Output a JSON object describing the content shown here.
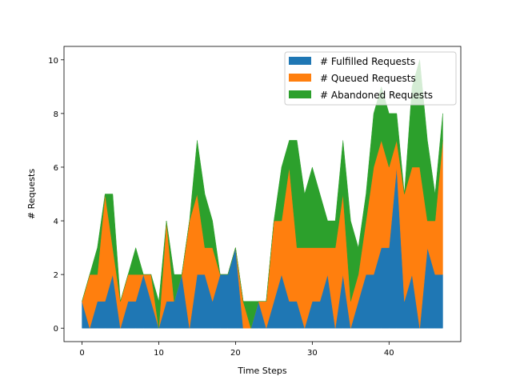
{
  "chart_data": {
    "type": "area",
    "stacked": true,
    "xlabel": "Time Steps",
    "ylabel": "# Requests",
    "xlim": [
      -2.35,
      49.35
    ],
    "ylim": [
      -0.5,
      10.5
    ],
    "xticks": [
      0,
      10,
      20,
      30,
      40
    ],
    "yticks": [
      0,
      2,
      4,
      6,
      8,
      10
    ],
    "grid": false,
    "legend_position": "top-right",
    "x": [
      0,
      1,
      2,
      3,
      4,
      5,
      6,
      7,
      8,
      9,
      10,
      11,
      12,
      13,
      14,
      15,
      16,
      17,
      18,
      19,
      20,
      21,
      22,
      23,
      24,
      25,
      26,
      27,
      28,
      29,
      30,
      31,
      32,
      33,
      34,
      35,
      36,
      37,
      38,
      39,
      40,
      41,
      42,
      43,
      44,
      45,
      46,
      47
    ],
    "series": [
      {
        "name": "# Fulfilled Requests",
        "color": "#1f77b4",
        "values": [
          1,
          0,
          1,
          1,
          2,
          0,
          1,
          1,
          2,
          1,
          0,
          1,
          1,
          2,
          0,
          2,
          2,
          1,
          2,
          2,
          3,
          0,
          0,
          1,
          0,
          1,
          2,
          1,
          1,
          0,
          1,
          1,
          2,
          0,
          2,
          0,
          1,
          2,
          2,
          3,
          3,
          6,
          1,
          2,
          0,
          3,
          2,
          2
        ]
      },
      {
        "name": "# Queued Requests",
        "color": "#ff7f0e",
        "values": [
          0,
          2,
          1,
          4,
          1,
          1,
          1,
          1,
          0,
          1,
          0,
          3,
          0,
          0,
          4,
          3,
          1,
          2,
          0,
          0,
          0,
          1,
          0,
          0,
          1,
          3,
          2,
          5,
          2,
          3,
          2,
          2,
          1,
          3,
          3,
          1,
          1,
          2,
          4,
          4,
          3,
          1,
          4,
          4,
          6,
          1,
          2,
          5
        ]
      },
      {
        "name": "# Abandoned Requests",
        "color": "#2ca02c",
        "values": [
          0,
          0,
          1,
          0,
          2,
          0,
          0,
          1,
          0,
          0,
          1,
          0,
          1,
          0,
          0,
          2,
          2,
          1,
          0,
          0,
          0,
          0,
          1,
          0,
          0,
          0,
          2,
          1,
          4,
          2,
          3,
          2,
          1,
          1,
          2,
          3,
          1,
          1,
          2,
          2,
          2,
          1,
          0,
          3,
          4,
          3,
          1,
          1
        ]
      }
    ]
  }
}
